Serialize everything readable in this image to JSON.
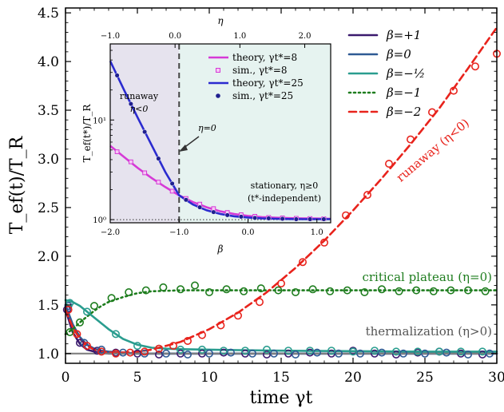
{
  "chart_data": [
    {
      "type": "line",
      "xlabel": "time  γt",
      "ylabel": "T_ef(t)/T_R",
      "xlim": [
        0,
        30
      ],
      "ylim": [
        0.9,
        4.55
      ],
      "xticks": [
        0,
        5,
        10,
        15,
        20,
        25,
        30
      ],
      "yticks": [
        1.0,
        1.5,
        2.0,
        2.5,
        3.0,
        3.5,
        4.0,
        4.5
      ],
      "x_tick_labels": [
        "0",
        "5",
        "10",
        "15",
        "20",
        "25",
        "30"
      ],
      "y_tick_labels": [
        "1.0",
        "1.5",
        "2.0",
        "2.5",
        "3.0",
        "3.5",
        "4.0",
        "4.5"
      ],
      "legend_position": "top-right",
      "series": [
        {
          "name": "β=+1",
          "color": "#3b1a6e",
          "style": "solid",
          "show_in_legend": true,
          "x": [
            0,
            0.5,
            1,
            1.5,
            2,
            2.5,
            3,
            4,
            6,
            10,
            15,
            20,
            25,
            30
          ],
          "y": [
            1.45,
            1.22,
            1.1,
            1.04,
            1.02,
            1.01,
            1.0,
            1.0,
            1.0,
            1.0,
            1.0,
            1.0,
            1.0,
            1.0
          ]
        },
        {
          "name": "β=0",
          "color": "#2e5a94",
          "style": "solid",
          "show_in_legend": true,
          "x": [
            0,
            0.5,
            1,
            1.5,
            2,
            2.5,
            3,
            4,
            5,
            7,
            10,
            15,
            20,
            25,
            30
          ],
          "y": [
            1.5,
            1.3,
            1.17,
            1.09,
            1.05,
            1.03,
            1.02,
            1.01,
            1.0,
            1.0,
            1.0,
            1.0,
            1.0,
            1.0,
            1.0
          ]
        },
        {
          "name": "β=−½",
          "color": "#2a9d8f",
          "style": "solid",
          "show_in_legend": true,
          "x": [
            0,
            0.5,
            1,
            1.5,
            2,
            3,
            4,
            5,
            6,
            7,
            8,
            10,
            12,
            15,
            20,
            25,
            30
          ],
          "y": [
            1.55,
            1.53,
            1.49,
            1.43,
            1.37,
            1.25,
            1.15,
            1.09,
            1.06,
            1.05,
            1.045,
            1.04,
            1.035,
            1.03,
            1.025,
            1.02,
            1.02
          ]
        },
        {
          "name": "β=−1",
          "color": "#1e7d1e",
          "style": "dotted",
          "show_in_legend": true,
          "x": [
            0,
            0.5,
            1,
            1.5,
            2,
            2.5,
            3,
            4,
            5,
            6,
            8,
            10,
            15,
            20,
            25,
            30
          ],
          "y": [
            1.2,
            1.25,
            1.32,
            1.38,
            1.44,
            1.49,
            1.53,
            1.58,
            1.62,
            1.64,
            1.65,
            1.65,
            1.65,
            1.65,
            1.65,
            1.65
          ]
        },
        {
          "name": "β=−2",
          "color": "#e8231c",
          "style": "dashed",
          "show_in_legend": true,
          "x": [
            0,
            0.5,
            1,
            1.5,
            2,
            2.5,
            3,
            4,
            5,
            6,
            7,
            8,
            10,
            12,
            14,
            16,
            18,
            20,
            22,
            24,
            26,
            28,
            30
          ],
          "y": [
            1.45,
            1.27,
            1.15,
            1.08,
            1.04,
            1.02,
            1.01,
            1.01,
            1.02,
            1.04,
            1.08,
            1.12,
            1.25,
            1.42,
            1.63,
            1.88,
            2.16,
            2.47,
            2.8,
            3.15,
            3.52,
            3.93,
            4.35
          ]
        },
        {
          "name": "reference T_R",
          "color": "#808080",
          "style": "solid",
          "show_in_legend": false,
          "x": [
            0,
            30
          ],
          "y": [
            1.0,
            1.0
          ]
        }
      ],
      "scatter": [
        {
          "color": "#3b1a6e",
          "x": [
            0.1,
            1,
            2.2,
            3.5,
            5,
            6.5,
            8,
            9.5,
            11,
            12.5,
            14,
            15.5,
            17,
            18.5,
            20,
            21.5,
            23,
            24.5,
            26,
            27.5,
            29
          ],
          "y": [
            1.45,
            1.11,
            1.03,
            1.01,
            1.0,
            0.99,
            1.0,
            1.0,
            1.01,
            1.0,
            0.99,
            1.0,
            1.01,
            1.0,
            1.03,
            1.0,
            0.99,
            1.01,
            1.02,
            1.0,
            0.99
          ]
        },
        {
          "color": "#2e5a94",
          "x": [
            0.2,
            1.3,
            2.5,
            4,
            5.5,
            7,
            8.5,
            10,
            11.5,
            13,
            14.5,
            16,
            17.5,
            19,
            20.5,
            22,
            23.5,
            25,
            26.5,
            28,
            29.5
          ],
          "y": [
            1.49,
            1.11,
            1.04,
            1.01,
            1.0,
            1.0,
            0.99,
            1.0,
            1.01,
            1.0,
            1.0,
            0.99,
            1.01,
            1.0,
            1.0,
            1.01,
            1.0,
            1.0,
            1.01,
            0.99,
            1.0
          ]
        },
        {
          "color": "#2a9d8f",
          "x": [
            0.3,
            1.5,
            3.5,
            5,
            6.5,
            8,
            9.5,
            11,
            12.5,
            14,
            15.5,
            17,
            18.5,
            20,
            21.5,
            23,
            24.5,
            26,
            27.5,
            29
          ],
          "y": [
            1.52,
            1.43,
            1.2,
            1.08,
            1.05,
            1.04,
            1.04,
            1.03,
            1.03,
            1.04,
            1.03,
            1.03,
            1.03,
            1.02,
            1.03,
            1.02,
            1.02,
            1.02,
            1.02,
            1.02
          ]
        },
        {
          "color": "#1e7d1e",
          "x": [
            0.3,
            1,
            2,
            3.2,
            4.4,
            5.6,
            6.8,
            8,
            9,
            10,
            11.2,
            12.4,
            13.6,
            14.8,
            16,
            17.2,
            18.4,
            19.6,
            20.8,
            22,
            23.2,
            24.4,
            25.6,
            26.8,
            28,
            29.2
          ],
          "y": [
            1.22,
            1.32,
            1.49,
            1.57,
            1.63,
            1.65,
            1.68,
            1.66,
            1.7,
            1.63,
            1.66,
            1.64,
            1.67,
            1.65,
            1.63,
            1.66,
            1.64,
            1.65,
            1.63,
            1.66,
            1.64,
            1.65,
            1.64,
            1.65,
            1.65,
            1.64
          ]
        },
        {
          "color": "#e8231c",
          "x": [
            0.2,
            0.8,
            1.5,
            2.5,
            3.5,
            4.5,
            5.5,
            6.5,
            7.5,
            8.5,
            9.5,
            10.8,
            12,
            13.5,
            15,
            16.5,
            18,
            19.5,
            21,
            22.5,
            24,
            25.5,
            27,
            28.5,
            30
          ],
          "y": [
            1.45,
            1.2,
            1.08,
            1.02,
            1.0,
            1.01,
            1.02,
            1.05,
            1.08,
            1.13,
            1.19,
            1.29,
            1.39,
            1.53,
            1.72,
            1.94,
            2.14,
            2.42,
            2.63,
            2.95,
            3.2,
            3.48,
            3.7,
            3.95,
            4.08
          ]
        }
      ],
      "annotations": [
        {
          "text": "runaway (η<0)",
          "color": "#e8231c",
          "rotation": -40
        },
        {
          "text": "critical plateau (η=0)",
          "color": "#1e7d1e",
          "rotation": 0
        },
        {
          "text": "thermalization (η>0)",
          "color": "#555555",
          "rotation": 0
        }
      ]
    },
    {
      "type": "line",
      "xlabel": "β",
      "ylabel": "T_ef(t*)/T_R",
      "top_xlabel": "η",
      "xlim": [
        -2.0,
        1.2
      ],
      "top_xlim": [
        -1.0,
        2.4
      ],
      "ylim": [
        0.93,
        58
      ],
      "log_y": true,
      "xticks": [
        -2.0,
        -1.0,
        0.0,
        1.0
      ],
      "x_tick_labels": [
        "−2.0",
        "−1.0",
        "0.0",
        "1.0"
      ],
      "top_xticks": [
        -1.0,
        0.0,
        1.0,
        2.0
      ],
      "top_x_tick_labels": [
        "−1.0",
        "0.0",
        "1.0",
        "2.0"
      ],
      "yticks": [
        1,
        10
      ],
      "y_tick_labels": [
        "10⁰",
        "10¹"
      ],
      "legend_position": "top-right",
      "regions": [
        {
          "label": "runaway",
          "sublabel": "η<0",
          "x_from": -2.0,
          "x_to": -1.0,
          "color": "#e6e3ee"
        },
        {
          "label": "stationary, η≥0",
          "sublabel": "(t*-independent)",
          "x_from": -1.0,
          "x_to": 1.2,
          "color": "#e6f3f0"
        }
      ],
      "vline": {
        "x": -1.0,
        "label": "η=0"
      },
      "series": [
        {
          "name": "theory, γt*=8",
          "color": "#d63ad6",
          "style": "solid",
          "x": [
            -2.0,
            -1.8,
            -1.6,
            -1.4,
            -1.2,
            -1.0,
            -0.8,
            -0.6,
            -0.4,
            -0.2,
            0.0,
            0.2,
            0.4,
            0.6,
            0.8,
            1.0,
            1.2
          ],
          "y": [
            5.5,
            4.25,
            3.3,
            2.62,
            2.12,
            1.75,
            1.5,
            1.33,
            1.21,
            1.14,
            1.09,
            1.06,
            1.045,
            1.035,
            1.03,
            1.025,
            1.02
          ]
        },
        {
          "name": "theory, γt*=25",
          "color": "#2b2bcf",
          "style": "solid",
          "x": [
            -2.0,
            -1.8,
            -1.6,
            -1.4,
            -1.2,
            -1.0,
            -0.8,
            -0.6,
            -0.4,
            -0.2,
            0.0,
            0.2,
            0.4,
            0.6,
            0.8,
            1.0,
            1.2
          ],
          "y": [
            39,
            20,
            10.5,
            5.6,
            3.0,
            1.75,
            1.42,
            1.24,
            1.14,
            1.08,
            1.05,
            1.03,
            1.02,
            1.015,
            1.01,
            1.01,
            1.01
          ]
        }
      ],
      "scatter": [
        {
          "name": "sim., γt*=8",
          "color": "#d63ad6",
          "marker": "square",
          "x": [
            -1.9,
            -1.7,
            -1.5,
            -1.3,
            -1.1,
            -0.9,
            -0.7,
            -0.5,
            -0.3,
            -0.1,
            0.1,
            0.3,
            0.5,
            0.7,
            0.9,
            1.1
          ],
          "y": [
            4.8,
            3.8,
            2.95,
            2.38,
            1.93,
            1.63,
            1.43,
            1.29,
            1.18,
            1.12,
            1.08,
            1.05,
            1.04,
            1.03,
            1.025,
            1.02
          ]
        },
        {
          "name": "sim., γt*=25",
          "color": "#1f1f8f",
          "marker": "circle",
          "x": [
            -1.9,
            -1.7,
            -1.5,
            -1.3,
            -1.1,
            -0.9,
            -0.7,
            -0.5,
            -0.3,
            -0.1,
            0.1,
            0.3,
            0.5,
            0.7,
            0.9,
            1.1
          ],
          "y": [
            28,
            14.5,
            7.6,
            4.1,
            2.3,
            1.58,
            1.33,
            1.19,
            1.11,
            1.07,
            1.04,
            1.03,
            1.02,
            1.01,
            1.01,
            1.01
          ]
        }
      ]
    }
  ],
  "main_legend": [
    {
      "label": "β=+1",
      "color": "#3b1a6e",
      "style": "solid"
    },
    {
      "label": "β=0",
      "color": "#2e5a94",
      "style": "solid"
    },
    {
      "label": "β=−½",
      "color": "#2a9d8f",
      "style": "solid"
    },
    {
      "label": "β=−1",
      "color": "#1e7d1e",
      "style": "dotted"
    },
    {
      "label": "β=−2",
      "color": "#e8231c",
      "style": "dashed"
    }
  ],
  "inset_legend": [
    {
      "label": "theory, γt*=8",
      "color": "#d63ad6",
      "kind": "line"
    },
    {
      "label": "sim., γt*=8",
      "color": "#d63ad6",
      "kind": "square"
    },
    {
      "label": "theory, γt*=25",
      "color": "#2b2bcf",
      "kind": "line"
    },
    {
      "label": "sim., γt*=25",
      "color": "#1f1f8f",
      "kind": "circle"
    }
  ]
}
